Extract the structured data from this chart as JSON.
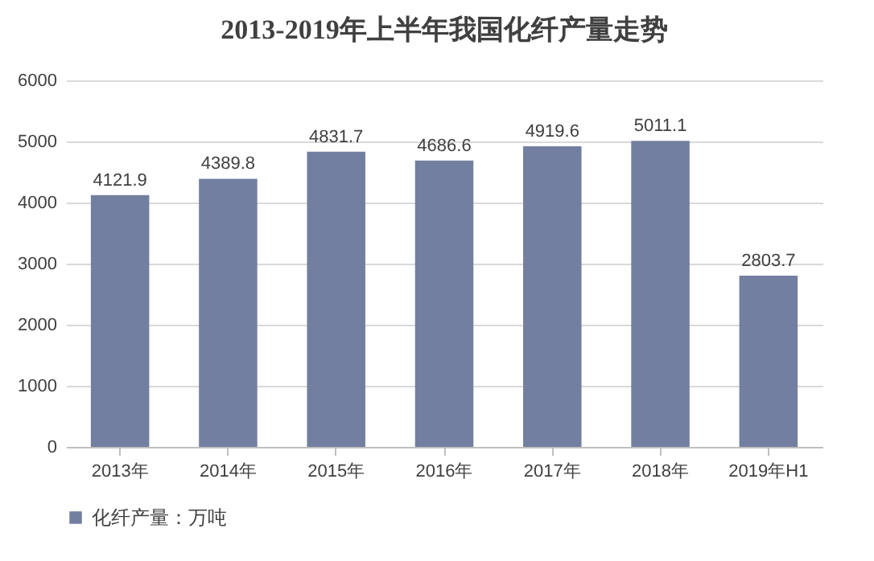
{
  "chart_data": {
    "type": "bar",
    "title": "2013-2019年上半年我国化纤产量走势",
    "categories": [
      "2013年",
      "2014年",
      "2015年",
      "2016年",
      "2017年",
      "2018年",
      "2019年H1"
    ],
    "series": [
      {
        "name": "化纤产量：万吨",
        "color": "#737fa0",
        "values": [
          4121.9,
          4389.8,
          4831.7,
          4686.6,
          4919.6,
          5011.1,
          2803.7
        ]
      }
    ],
    "ylim": [
      0,
      6000
    ],
    "yticks": [
      0,
      1000,
      2000,
      3000,
      4000,
      5000,
      6000
    ],
    "grid": "y",
    "legend": "bottom",
    "data_labels": true
  }
}
